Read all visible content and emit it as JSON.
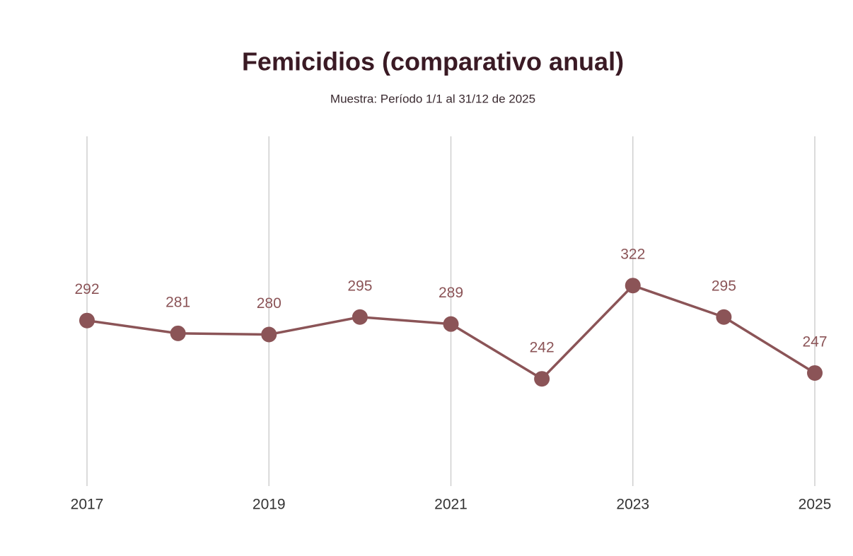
{
  "chart_data": {
    "type": "line",
    "title": "Femicidios (comparativo anual)",
    "subtitle": "Muestra: Período 1/1 al 31/12 de 2025",
    "x": [
      2017,
      2018,
      2019,
      2020,
      2021,
      2022,
      2023,
      2024,
      2025
    ],
    "values": [
      292,
      281,
      280,
      295,
      289,
      242,
      322,
      295,
      247
    ],
    "color": "#8b5457",
    "xlim": [
      2017,
      2025
    ],
    "xticks": [
      2017,
      2019,
      2021,
      2023,
      2025
    ],
    "ylim": [
      150,
      450
    ],
    "grid": true
  }
}
